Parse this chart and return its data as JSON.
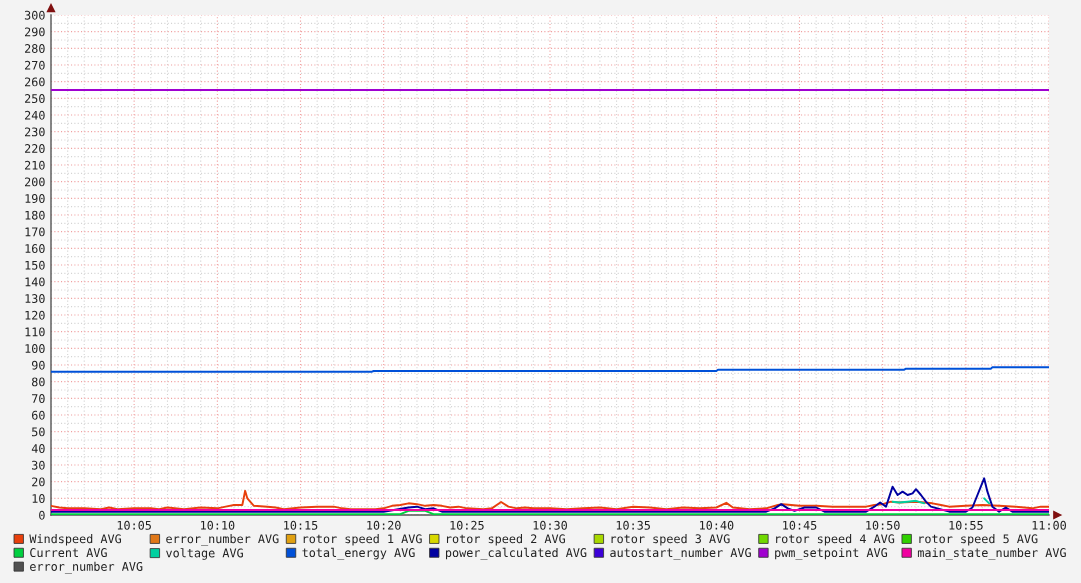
{
  "chart_data": {
    "type": "line",
    "xlim": [
      10.0,
      11.0
    ],
    "ylim": [
      0,
      300
    ],
    "xticks": [
      {
        "value": 10.0,
        "label": null
      },
      {
        "value": 10.0167,
        "label": null
      },
      {
        "value": 10.0333,
        "label": null
      },
      {
        "value": 10.05,
        "label": null
      },
      {
        "value": 10.0667,
        "label": null
      },
      {
        "value": 10.0833,
        "label": "10:05"
      },
      {
        "value": 10.1,
        "label": null
      },
      {
        "value": 10.1167,
        "label": null
      },
      {
        "value": 10.1333,
        "label": null
      },
      {
        "value": 10.15,
        "label": null
      },
      {
        "value": 10.1667,
        "label": "10:10"
      },
      {
        "value": 10.1833,
        "label": null
      },
      {
        "value": 10.2,
        "label": null
      },
      {
        "value": 10.2167,
        "label": null
      },
      {
        "value": 10.2333,
        "label": null
      },
      {
        "value": 10.25,
        "label": "10:15"
      },
      {
        "value": 10.2667,
        "label": null
      },
      {
        "value": 10.2833,
        "label": null
      },
      {
        "value": 10.3,
        "label": null
      },
      {
        "value": 10.3167,
        "label": null
      },
      {
        "value": 10.3333,
        "label": "10:20"
      },
      {
        "value": 10.35,
        "label": null
      },
      {
        "value": 10.3667,
        "label": null
      },
      {
        "value": 10.3833,
        "label": null
      },
      {
        "value": 10.4,
        "label": null
      },
      {
        "value": 10.4167,
        "label": "10:25"
      },
      {
        "value": 10.4333,
        "label": null
      },
      {
        "value": 10.45,
        "label": null
      },
      {
        "value": 10.4667,
        "label": null
      },
      {
        "value": 10.4833,
        "label": null
      },
      {
        "value": 10.5,
        "label": "10:30"
      },
      {
        "value": 10.5167,
        "label": null
      },
      {
        "value": 10.5333,
        "label": null
      },
      {
        "value": 10.55,
        "label": null
      },
      {
        "value": 10.5667,
        "label": null
      },
      {
        "value": 10.5833,
        "label": "10:35"
      },
      {
        "value": 10.6,
        "label": null
      },
      {
        "value": 10.6167,
        "label": null
      },
      {
        "value": 10.6333,
        "label": null
      },
      {
        "value": 10.65,
        "label": null
      },
      {
        "value": 10.6667,
        "label": "10:40"
      },
      {
        "value": 10.6833,
        "label": null
      },
      {
        "value": 10.7,
        "label": null
      },
      {
        "value": 10.7167,
        "label": null
      },
      {
        "value": 10.7333,
        "label": null
      },
      {
        "value": 10.75,
        "label": "10:45"
      },
      {
        "value": 10.7667,
        "label": null
      },
      {
        "value": 10.7833,
        "label": null
      },
      {
        "value": 10.8,
        "label": null
      },
      {
        "value": 10.8167,
        "label": null
      },
      {
        "value": 10.8333,
        "label": "10:50"
      },
      {
        "value": 10.85,
        "label": null
      },
      {
        "value": 10.8667,
        "label": null
      },
      {
        "value": 10.8833,
        "label": null
      },
      {
        "value": 10.9,
        "label": null
      },
      {
        "value": 10.9167,
        "label": "10:55"
      },
      {
        "value": 10.9333,
        "label": null
      },
      {
        "value": 10.95,
        "label": null
      },
      {
        "value": 10.9667,
        "label": null
      },
      {
        "value": 10.9833,
        "label": null
      },
      {
        "value": 11.0,
        "label": "11:00"
      }
    ],
    "yticks": [
      0,
      {
        "value": 5,
        "label": null
      },
      10,
      {
        "value": 15,
        "label": null
      },
      20,
      {
        "value": 25,
        "label": null
      },
      30,
      {
        "value": 35,
        "label": null
      },
      40,
      {
        "value": 45,
        "label": null
      },
      50,
      {
        "value": 55,
        "label": null
      },
      60,
      {
        "value": 65,
        "label": null
      },
      70,
      {
        "value": 75,
        "label": null
      },
      80,
      {
        "value": 85,
        "label": null
      },
      90,
      {
        "value": 95,
        "label": null
      },
      100,
      {
        "value": 105,
        "label": null
      },
      110,
      {
        "value": 115,
        "label": null
      },
      120,
      {
        "value": 125,
        "label": null
      },
      130,
      {
        "value": 135,
        "label": null
      },
      140,
      {
        "value": 145,
        "label": null
      },
      150,
      {
        "value": 155,
        "label": null
      },
      160,
      {
        "value": 165,
        "label": null
      },
      170,
      {
        "value": 175,
        "label": null
      },
      180,
      {
        "value": 185,
        "label": null
      },
      190,
      {
        "value": 195,
        "label": null
      },
      200,
      {
        "value": 205,
        "label": null
      },
      210,
      {
        "value": 215,
        "label": null
      },
      220,
      {
        "value": 225,
        "label": null
      },
      230,
      {
        "value": 235,
        "label": null
      },
      240,
      {
        "value": 245,
        "label": null
      },
      250,
      {
        "value": 255,
        "label": null
      },
      260,
      {
        "value": 265,
        "label": null
      },
      270,
      {
        "value": 275,
        "label": null
      },
      280,
      {
        "value": 285,
        "label": null
      },
      290,
      {
        "value": 295,
        "label": null
      },
      300
    ],
    "grid": true,
    "legend": "bottom",
    "line_style": "solid",
    "marker": "none",
    "series": [
      {
        "name": "Windspeed AVG",
        "color": "#e8400c",
        "x": [
          10.0,
          10.0083,
          10.0167,
          10.0333,
          10.05,
          10.0583,
          10.0667,
          10.0833,
          10.1,
          10.1083,
          10.1167,
          10.1333,
          10.15,
          10.1667,
          10.175,
          10.1833,
          10.1917,
          10.1945,
          10.1967,
          10.2033,
          10.2167,
          10.225,
          10.2333,
          10.25,
          10.2667,
          10.2833,
          10.2917,
          10.3,
          10.3167,
          10.325,
          10.3333,
          10.3417,
          10.35,
          10.3583,
          10.3667,
          10.375,
          10.3833,
          10.3917,
          10.4,
          10.4083,
          10.4167,
          10.4333,
          10.4417,
          10.451,
          10.4583,
          10.4667,
          10.475,
          10.4833,
          10.5,
          10.5167,
          10.5333,
          10.55,
          10.5667,
          10.5833,
          10.6,
          10.6167,
          10.6333,
          10.65,
          10.6667,
          10.6767,
          10.6833,
          10.7,
          10.7167,
          10.7283,
          10.7333,
          10.75,
          10.7667,
          10.7833,
          10.8,
          10.8167,
          10.825,
          10.8333,
          10.8417,
          10.85,
          10.8667,
          10.8833,
          10.8917,
          10.9,
          10.9167,
          10.9333,
          10.95,
          10.9667,
          10.9833,
          10.9917,
          11.0
        ],
        "values": [
          5.5,
          4.5,
          4,
          4,
          3.5,
          4.5,
          3.5,
          4,
          4,
          3.5,
          4.5,
          3.5,
          4.5,
          4,
          5,
          6,
          6,
          14.5,
          10,
          5.5,
          5,
          4.5,
          3.5,
          4.5,
          5,
          5,
          4,
          3.5,
          3.5,
          3.5,
          4,
          5.5,
          6,
          7,
          6.5,
          5.5,
          6,
          5.5,
          4.5,
          5,
          4,
          3.5,
          4,
          7.8,
          5,
          4,
          4.5,
          4,
          4,
          3.5,
          4,
          4.5,
          3.5,
          5,
          4.5,
          3.5,
          4.5,
          4,
          4.5,
          7.3,
          4.5,
          3.5,
          4,
          6,
          6.5,
          5.5,
          5.5,
          5,
          5,
          5,
          6,
          6.5,
          8,
          7.5,
          8,
          7,
          6,
          5,
          5.5,
          6,
          5.5,
          5,
          4,
          5,
          5
        ]
      },
      {
        "name": "error_number AVG",
        "color": "#e07818"
      },
      {
        "name": "rotor speed 1 AVG",
        "color": "#e0a010"
      },
      {
        "name": "rotor speed 2 AVG",
        "color": "#d8d800"
      },
      {
        "name": "rotor speed 3 AVG",
        "color": "#a8d800"
      },
      {
        "name": "rotor speed 4 AVG",
        "color": "#70d800"
      },
      {
        "name": "rotor speed 5 AVG",
        "color": "#30d000"
      },
      {
        "name": "Current AVG",
        "color": "#00d040",
        "x": [
          10.0,
          10.35,
          10.3583,
          10.375,
          10.3833,
          11.0
        ],
        "values": [
          0.5,
          0.5,
          2.5,
          2.5,
          0.5,
          0.5
        ]
      },
      {
        "name": "voltage AVG",
        "color": "#00d0a0",
        "x": [
          10.8433,
          10.85,
          10.8583,
          10.8667,
          10.875,
          10.9,
          10.935,
          10.94
        ],
        "values": [
          8,
          7.5,
          8,
          8.5,
          7,
          null,
          10,
          7
        ]
      },
      {
        "name": "total_energy AVG",
        "color": "#0050d8",
        "x": [
          10.0,
          10.3217,
          10.3233,
          10.6667,
          10.6683,
          10.855,
          10.8567,
          10.9417,
          10.9433,
          11.0
        ],
        "values": [
          86,
          86,
          86.4,
          86.4,
          87.2,
          87.2,
          87.8,
          87.8,
          88.6,
          88.6
        ]
      },
      {
        "name": "power_calculated AVG",
        "color": "#0000a0",
        "x": [
          10.0,
          10.3333,
          10.3583,
          10.3667,
          10.375,
          10.3833,
          10.3917,
          10.7167,
          10.725,
          10.7317,
          10.7383,
          10.745,
          10.755,
          10.7667,
          10.775,
          10.8167,
          10.825,
          10.8308,
          10.8367,
          10.8433,
          10.8483,
          10.8533,
          10.8583,
          10.8633,
          10.8667,
          10.8717,
          10.8767,
          10.8817,
          10.9,
          10.9167,
          10.9233,
          10.935,
          10.9383,
          10.9433,
          10.95,
          10.9567,
          10.9633,
          10.9833,
          11.0
        ],
        "values": [
          2,
          2,
          4.5,
          5,
          3.5,
          4,
          2,
          2,
          4,
          6.5,
          4,
          2.5,
          4.5,
          4.5,
          2,
          2,
          5,
          7.5,
          5,
          17,
          12,
          14,
          12,
          13,
          15.5,
          12,
          8,
          5,
          2,
          2,
          4.5,
          22,
          14,
          5,
          2,
          4.5,
          2,
          2,
          2
        ]
      },
      {
        "name": "autostart_number AVG",
        "color": "#3c00d8"
      },
      {
        "name": "pwm_setpoint AVG",
        "color": "#a000d0",
        "x": [
          10.0,
          11.0
        ],
        "values": [
          255,
          255
        ]
      },
      {
        "name": "main_state_number AVG",
        "color": "#f000a0",
        "x": [
          10.0,
          11.0
        ],
        "values": [
          3,
          3
        ]
      },
      {
        "name": "error_number AVG",
        "color": "#505050"
      }
    ]
  }
}
